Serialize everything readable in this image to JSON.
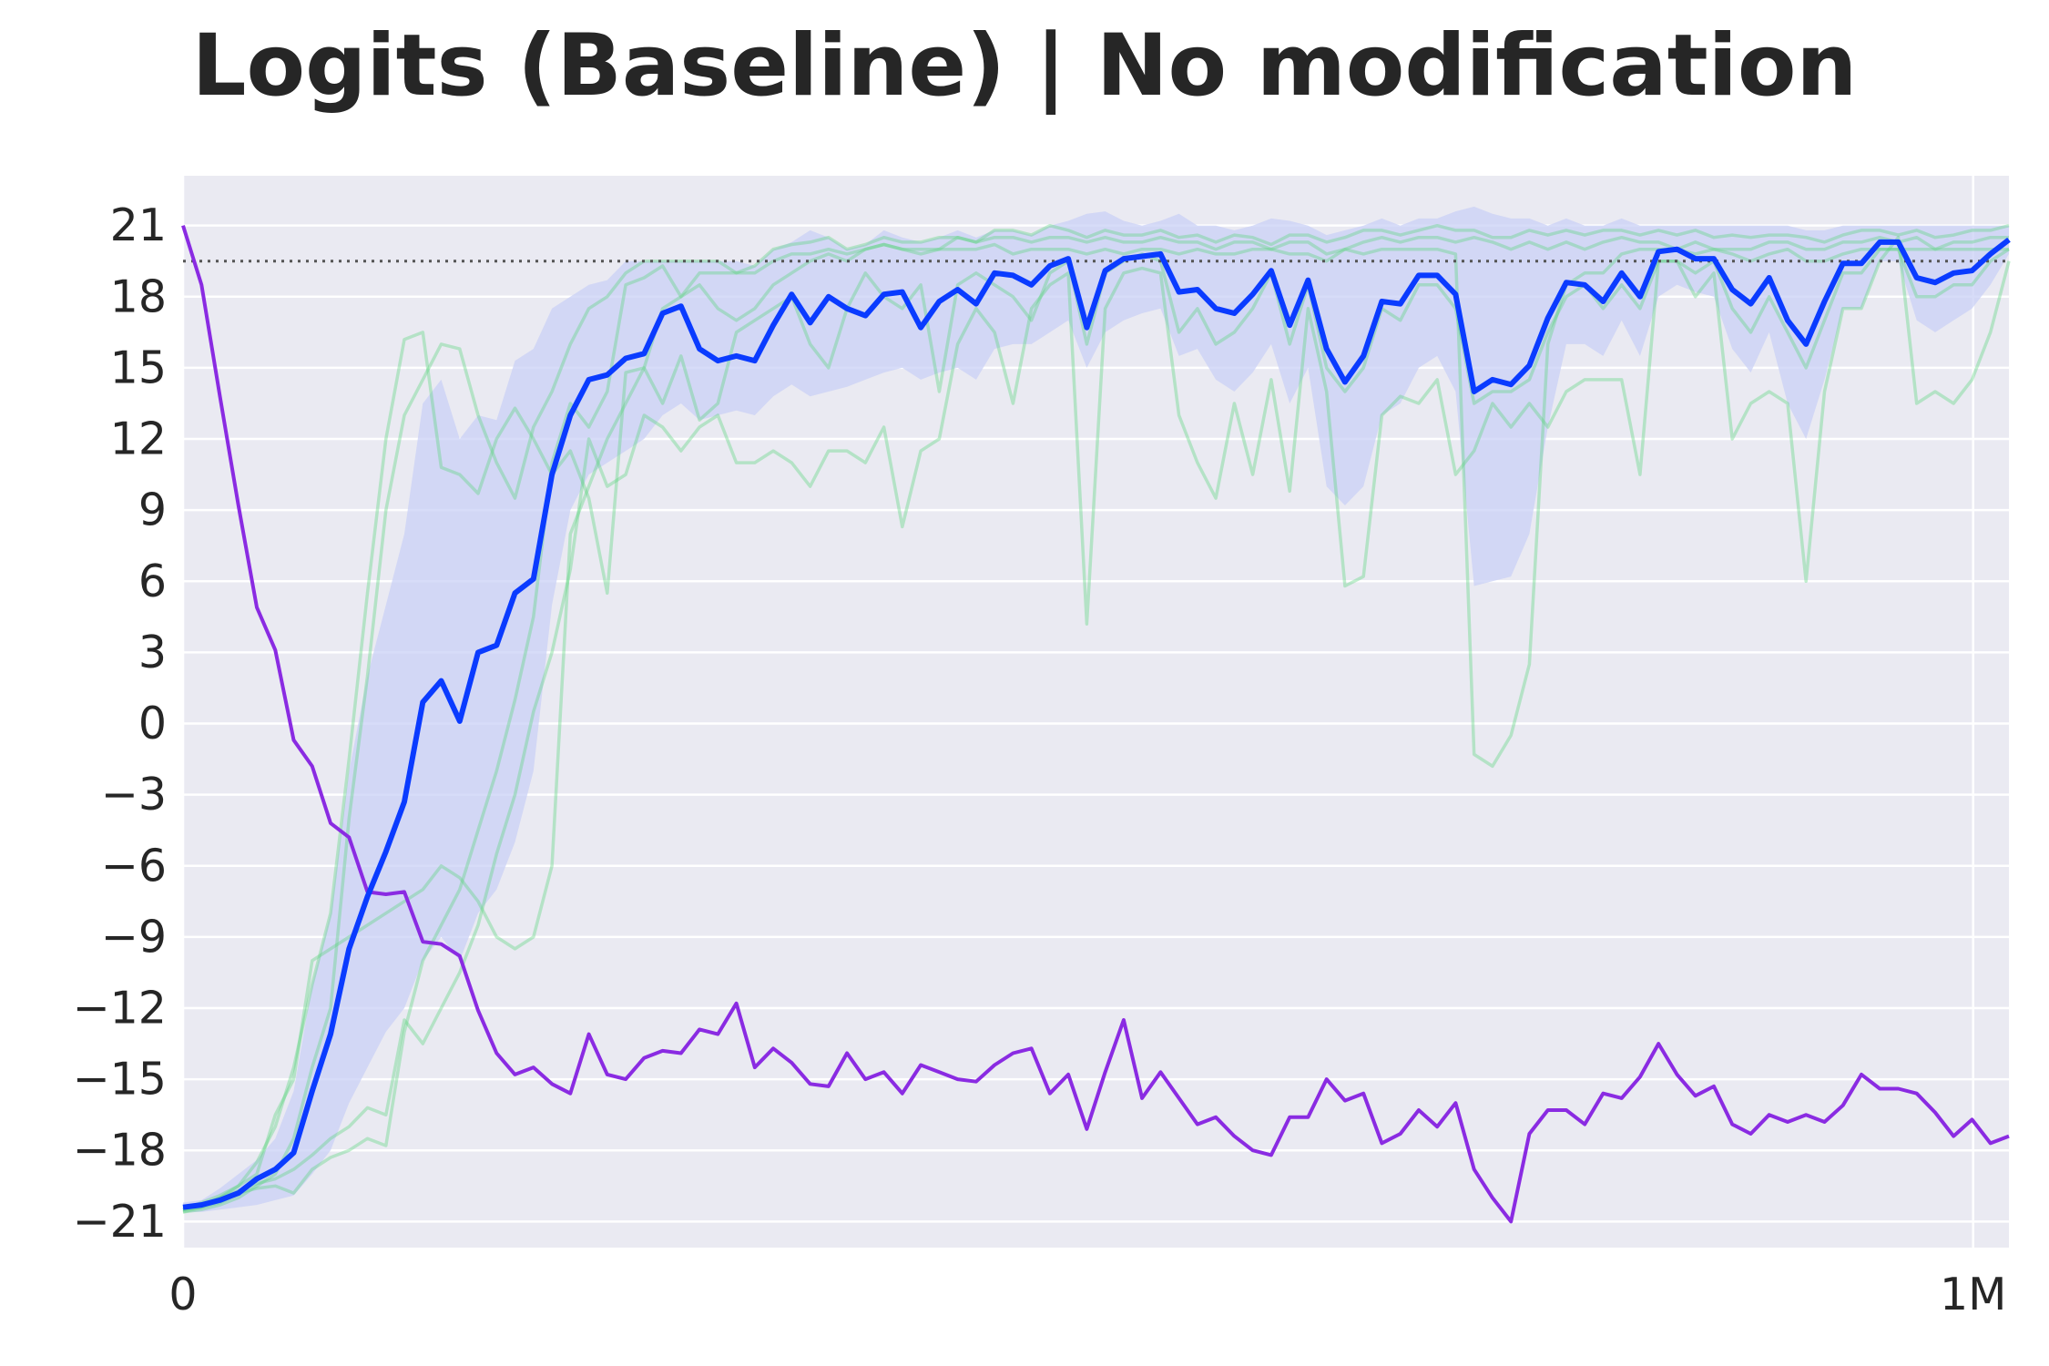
{
  "title": "Logits (Baseline) | No modification",
  "chart_data": {
    "type": "line",
    "title": "Logits (Baseline) | No modification",
    "xlabel": "",
    "ylabel": "",
    "x_range": [
      0,
      1020000
    ],
    "ylim": [
      -22.1,
      23.1
    ],
    "x_ticks": [
      {
        "value": 0,
        "label": "0"
      },
      {
        "value": 1000000,
        "label": "1M"
      }
    ],
    "y_ticks": [
      -21,
      -18,
      -15,
      -12,
      -9,
      -6,
      -3,
      0,
      3,
      6,
      9,
      12,
      15,
      18,
      21
    ],
    "y_tick_labels": [
      "−21",
      "−18",
      "−15",
      "−12",
      "−9",
      "−6",
      "−3",
      "0",
      "3",
      "6",
      "9",
      "12",
      "15",
      "18",
      "21"
    ],
    "reference_line": {
      "y": 19.5,
      "style": "dotted",
      "color": "#555555"
    },
    "grid": true,
    "background": "#EAEAF2",
    "series": [
      {
        "role": "mean",
        "color": "#0A3BFF",
        "values": [
          -20.4,
          -20.3,
          -20.1,
          -19.8,
          -19.2,
          -18.8,
          -18.1,
          -15.5,
          -13.1,
          -9.5,
          -7.3,
          -5.4,
          -3.3,
          0.9,
          1.8,
          0.1,
          3.0,
          3.3,
          5.5,
          6.1,
          10.5,
          13.0,
          14.5,
          14.7,
          15.4,
          15.6,
          17.3,
          17.6,
          15.8,
          15.3,
          15.5,
          15.3,
          16.8,
          18.1,
          16.9,
          18.0,
          17.5,
          17.2,
          18.1,
          18.2,
          16.7,
          17.8,
          18.3,
          17.7,
          19.0,
          18.9,
          18.5,
          19.3,
          19.6,
          16.7,
          19.1,
          19.6,
          19.7,
          19.8,
          18.2,
          18.3,
          17.5,
          17.3,
          18.1,
          19.1,
          16.8,
          18.7,
          15.8,
          14.4,
          15.5,
          17.8,
          17.7,
          18.9,
          18.9,
          18.1,
          14.0,
          14.5,
          14.3,
          15.1,
          17.1,
          18.6,
          18.5,
          17.8,
          19.0,
          18.0,
          19.9,
          20.0,
          19.6,
          19.6,
          18.3,
          17.7,
          18.8,
          17.0,
          16.0,
          17.8,
          19.4,
          19.4,
          20.3,
          20.3,
          18.8,
          18.6,
          19.0,
          19.1,
          19.8,
          20.4
        ]
      },
      {
        "role": "min-max band",
        "color": "#C9D0F5",
        "upper": [
          -20.2,
          -20.1,
          -19.6,
          -19.0,
          -18.4,
          -17.5,
          -15.5,
          -11.0,
          -8.0,
          -2.0,
          2.0,
          5.0,
          8.0,
          13.5,
          14.5,
          12.0,
          13.0,
          12.8,
          15.3,
          15.8,
          17.5,
          18.0,
          18.5,
          18.7,
          19.5,
          19.5,
          19.5,
          19.5,
          19.5,
          19.5,
          19.5,
          19.3,
          20.0,
          20.3,
          20.8,
          20.5,
          20.0,
          20.2,
          20.8,
          20.5,
          20.3,
          20.5,
          20.8,
          20.5,
          20.8,
          20.8,
          20.6,
          21.0,
          21.2,
          21.5,
          21.6,
          21.2,
          21.0,
          21.2,
          21.5,
          21.0,
          21.0,
          20.8,
          21.0,
          21.3,
          21.2,
          21.0,
          20.6,
          20.8,
          21.0,
          21.3,
          21.0,
          21.3,
          21.3,
          21.6,
          21.8,
          21.5,
          21.3,
          21.3,
          21.0,
          21.3,
          21.0,
          21.0,
          21.3,
          21.0,
          21.0,
          21.0,
          21.0,
          21.0,
          21.0,
          21.0,
          21.0,
          21.0,
          20.8,
          20.8,
          21.0,
          21.0,
          21.0,
          21.0,
          21.0,
          21.0,
          21.0,
          21.0,
          21.0,
          21.0
        ],
        "lower": [
          -20.6,
          -20.6,
          -20.5,
          -20.4,
          -20.3,
          -20.1,
          -19.9,
          -19.0,
          -18.0,
          -16.0,
          -14.5,
          -13.0,
          -12.0,
          -10.0,
          -9.0,
          -10.0,
          -8.0,
          -7.0,
          -5.0,
          -2.0,
          5.0,
          9.0,
          10.5,
          11.0,
          11.5,
          12.0,
          13.0,
          13.5,
          12.8,
          13.0,
          13.2,
          13.0,
          13.8,
          14.3,
          13.8,
          14.0,
          14.2,
          14.5,
          14.8,
          15.0,
          14.5,
          14.8,
          15.0,
          14.5,
          15.8,
          16.0,
          16.0,
          16.5,
          17.0,
          15.0,
          16.5,
          17.0,
          17.3,
          17.5,
          15.5,
          15.8,
          14.5,
          14.0,
          14.8,
          16.0,
          13.5,
          15.0,
          10.0,
          9.2,
          10.0,
          13.0,
          13.5,
          15.0,
          15.5,
          14.0,
          5.8,
          6.0,
          6.2,
          8.0,
          12.5,
          16.0,
          16.0,
          15.5,
          17.0,
          15.5,
          18.0,
          18.5,
          18.2,
          18.0,
          15.8,
          14.8,
          16.5,
          13.5,
          12.0,
          14.5,
          17.5,
          17.5,
          19.5,
          19.5,
          17.0,
          16.5,
          17.0,
          17.5,
          18.5,
          19.8
        ]
      },
      {
        "role": "other",
        "color": "#8A2BE2",
        "values": [
          21.0,
          18.5,
          13.8,
          9.2,
          4.9,
          3.1,
          -0.7,
          -1.8,
          -4.2,
          -4.8,
          -7.1,
          -7.2,
          -7.1,
          -9.2,
          -9.3,
          -9.8,
          -12.1,
          -13.9,
          -14.8,
          -14.5,
          -15.2,
          -15.6,
          -13.1,
          -14.8,
          -15.0,
          -14.1,
          -13.8,
          -13.9,
          -12.9,
          -13.1,
          -11.8,
          -14.5,
          -13.7,
          -14.3,
          -15.2,
          -15.3,
          -13.9,
          -15.0,
          -14.7,
          -15.6,
          -14.4,
          -14.7,
          -15.0,
          -15.1,
          -14.4,
          -13.9,
          -13.7,
          -15.6,
          -14.8,
          -17.1,
          -14.7,
          -12.5,
          -15.8,
          -14.7,
          -15.8,
          -16.9,
          -16.6,
          -17.4,
          -18.0,
          -18.2,
          -16.6,
          -16.6,
          -15.0,
          -15.9,
          -15.6,
          -17.7,
          -17.3,
          -16.3,
          -17.0,
          -16.0,
          -18.8,
          -20.0,
          -21.0,
          -17.3,
          -16.3,
          -16.3,
          -16.9,
          -15.6,
          -15.8,
          -14.9,
          -13.5,
          -14.8,
          -15.7,
          -15.3,
          -16.9,
          -17.3,
          -16.5,
          -16.8,
          -16.5,
          -16.8,
          -16.1,
          -14.8,
          -15.4,
          -15.4,
          -15.6,
          -16.4,
          -17.4,
          -16.7,
          -17.7,
          -17.4
        ]
      },
      {
        "role": "seed run",
        "color": "#5DD67D",
        "values": [
          -20.5,
          -20.2,
          -19.9,
          -19.5,
          -19.0,
          -16.5,
          -15.0,
          -10.0,
          -9.5,
          -9.0,
          -8.5,
          -8.0,
          -7.5,
          -7.0,
          -6.0,
          -6.5,
          -7.5,
          -9.0,
          -9.5,
          -9.0,
          -6.0,
          8.0,
          10.0,
          12.0,
          13.5,
          15.0,
          17.5,
          18.0,
          18.5,
          17.5,
          17.0,
          17.5,
          18.5,
          19.0,
          19.5,
          19.8,
          19.5,
          20.0,
          20.2,
          20.0,
          19.8,
          20.0,
          20.5,
          20.3,
          20.8,
          20.8,
          20.6,
          21.0,
          20.8,
          20.5,
          20.8,
          20.6,
          20.6,
          20.8,
          20.5,
          20.6,
          20.3,
          20.6,
          20.5,
          20.2,
          20.6,
          20.6,
          20.3,
          20.5,
          20.8,
          20.8,
          20.6,
          20.8,
          21.0,
          20.8,
          20.8,
          20.5,
          20.5,
          20.8,
          20.6,
          20.8,
          20.6,
          20.8,
          20.8,
          20.6,
          20.8,
          20.6,
          20.8,
          20.5,
          20.6,
          20.5,
          20.6,
          20.6,
          20.5,
          20.3,
          20.6,
          20.8,
          20.8,
          20.6,
          20.8,
          20.5,
          20.6,
          20.8,
          20.8,
          21.0
        ]
      },
      {
        "role": "seed run",
        "color": "#5DD67D",
        "values": [
          -20.6,
          -20.5,
          -20.3,
          -20.0,
          -19.5,
          -19.0,
          -17.5,
          -14.5,
          -12.0,
          -4.0,
          2.0,
          9.0,
          13.0,
          14.5,
          16.0,
          15.8,
          13.0,
          11.0,
          9.5,
          12.5,
          14.0,
          16.0,
          17.5,
          18.0,
          19.0,
          19.5,
          19.5,
          19.5,
          19.5,
          19.5,
          19.0,
          19.3,
          20.0,
          20.2,
          20.3,
          20.5,
          20.0,
          20.2,
          20.5,
          20.3,
          20.3,
          20.5,
          20.5,
          20.3,
          20.5,
          20.5,
          20.3,
          20.5,
          20.5,
          20.3,
          20.5,
          20.3,
          20.3,
          20.5,
          20.3,
          20.3,
          20.0,
          20.3,
          20.3,
          20.0,
          20.3,
          20.3,
          19.8,
          20.0,
          20.3,
          20.5,
          20.3,
          20.5,
          20.5,
          20.3,
          20.5,
          20.3,
          20.0,
          20.3,
          20.0,
          20.3,
          20.0,
          20.3,
          20.5,
          20.3,
          20.3,
          20.0,
          20.3,
          20.0,
          20.0,
          20.0,
          20.3,
          20.3,
          20.0,
          20.0,
          20.3,
          20.3,
          20.5,
          20.3,
          20.5,
          20.0,
          20.3,
          20.3,
          20.5,
          20.5
        ]
      },
      {
        "role": "seed run",
        "color": "#5DD67D",
        "values": [
          -20.5,
          -20.3,
          -20.0,
          -19.5,
          -18.5,
          -17.0,
          -14.5,
          -11.0,
          -8.0,
          -1.5,
          5.5,
          12.0,
          16.2,
          16.5,
          10.8,
          10.5,
          9.7,
          12.0,
          13.3,
          12.0,
          10.5,
          11.5,
          9.5,
          5.5,
          14.8,
          15.0,
          13.5,
          15.5,
          12.8,
          13.5,
          16.5,
          17.0,
          17.5,
          18.0,
          16.0,
          15.0,
          17.5,
          19.0,
          18.0,
          17.5,
          18.5,
          14.0,
          18.5,
          19.0,
          18.5,
          18.0,
          17.0,
          19.0,
          19.5,
          16.0,
          19.0,
          19.5,
          19.8,
          19.5,
          16.5,
          17.5,
          16.0,
          16.5,
          17.5,
          19.0,
          16.0,
          18.5,
          15.0,
          14.0,
          15.0,
          17.5,
          17.0,
          18.5,
          18.5,
          17.5,
          13.5,
          14.0,
          14.0,
          14.5,
          16.5,
          18.0,
          18.5,
          17.5,
          18.5,
          17.5,
          19.5,
          19.5,
          19.0,
          19.5,
          17.5,
          16.5,
          18.0,
          16.5,
          15.0,
          17.0,
          19.0,
          19.0,
          20.0,
          20.0,
          18.0,
          18.0,
          18.5,
          18.5,
          19.5,
          20.0
        ]
      },
      {
        "role": "seed run",
        "color": "#5DD67D",
        "values": [
          -20.5,
          -20.4,
          -20.0,
          -19.7,
          -19.4,
          -19.2,
          -18.8,
          -18.2,
          -17.5,
          -17.0,
          -16.2,
          -16.5,
          -12.5,
          -13.5,
          -12.0,
          -10.5,
          -8.5,
          -5.5,
          -3.0,
          0.5,
          3.0,
          6.5,
          12.0,
          10.0,
          10.5,
          13.0,
          12.5,
          11.5,
          12.5,
          13.0,
          11.0,
          11.0,
          11.5,
          11.0,
          10.0,
          11.5,
          11.5,
          11.0,
          12.5,
          8.3,
          11.5,
          12.0,
          16.0,
          17.5,
          16.5,
          13.5,
          17.5,
          18.5,
          19.0,
          4.2,
          17.5,
          19.0,
          19.2,
          19.0,
          13.0,
          11.0,
          9.5,
          13.5,
          10.5,
          14.5,
          9.8,
          17.5,
          14.0,
          5.8,
          6.2,
          13.0,
          13.8,
          13.5,
          14.5,
          10.5,
          11.5,
          13.5,
          12.5,
          13.5,
          12.5,
          14.0,
          14.5,
          14.5,
          14.5,
          10.5,
          19.5,
          19.5,
          18.0,
          19.0,
          12.0,
          13.5,
          14.0,
          13.5,
          6.0,
          14.0,
          17.5,
          17.5,
          19.5,
          20.5,
          13.5,
          14.0,
          13.5,
          14.5,
          16.5,
          19.5
        ]
      },
      {
        "role": "seed run",
        "color": "#5DD67D",
        "values": [
          -20.6,
          -20.4,
          -20.2,
          -19.8,
          -19.6,
          -19.5,
          -19.8,
          -18.8,
          -18.3,
          -18.0,
          -17.5,
          -17.8,
          -13.0,
          -10.0,
          -8.5,
          -7.0,
          -4.5,
          -2.0,
          1.0,
          4.5,
          11.0,
          13.5,
          12.5,
          14.0,
          18.5,
          18.8,
          19.3,
          18.0,
          19.0,
          19.0,
          19.0,
          19.0,
          19.5,
          19.8,
          19.8,
          20.0,
          19.8,
          20.0,
          20.2,
          20.0,
          20.0,
          20.0,
          20.0,
          20.0,
          20.2,
          19.8,
          20.0,
          20.0,
          20.0,
          19.8,
          20.0,
          19.8,
          20.0,
          20.0,
          19.8,
          20.0,
          19.8,
          19.8,
          20.0,
          20.0,
          19.8,
          19.8,
          19.5,
          20.0,
          19.8,
          20.0,
          20.0,
          20.0,
          20.0,
          19.8,
          -1.3,
          -1.8,
          -0.5,
          2.5,
          16.0,
          18.5,
          19.0,
          19.0,
          19.8,
          20.0,
          20.0,
          20.0,
          19.8,
          20.0,
          19.8,
          19.5,
          19.8,
          20.0,
          19.5,
          19.5,
          19.8,
          20.0,
          20.0,
          20.0,
          20.0,
          20.0,
          20.0,
          20.0,
          20.0,
          20.0
        ]
      }
    ]
  }
}
